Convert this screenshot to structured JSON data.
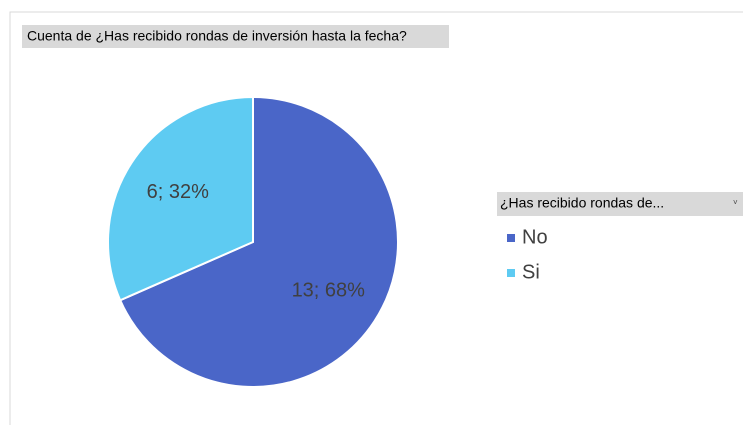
{
  "chart_data": {
    "type": "pie",
    "title": "Cuenta de ¿Has recibido rondas de inversión hasta la fecha?",
    "legend_title": "¿Has recibido rondas de...",
    "categories": [
      "No",
      "Si"
    ],
    "values": [
      13,
      6
    ],
    "value_labels": [
      "13; 68%",
      "6; 32%"
    ],
    "colors": [
      "#4a66c8",
      "#5ecbf2"
    ],
    "legend": "right"
  }
}
